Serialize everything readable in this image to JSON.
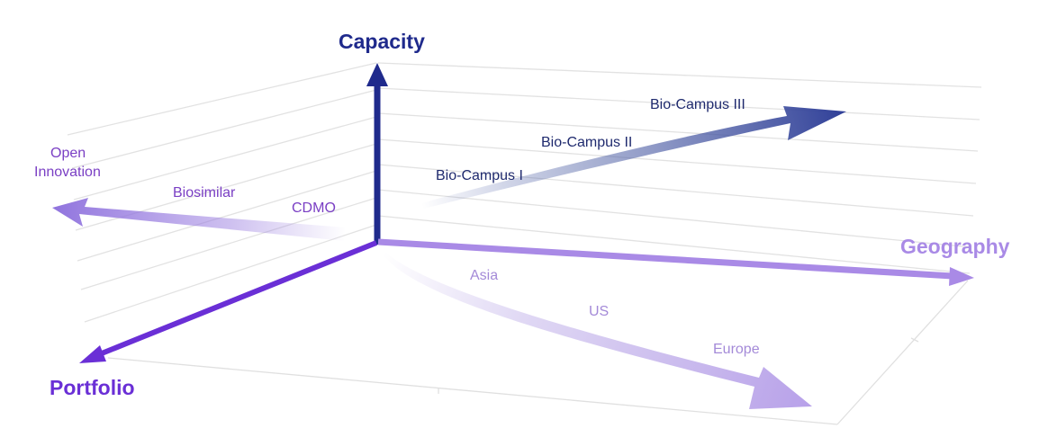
{
  "axes": {
    "capacity": "Capacity",
    "geography": "Geography",
    "portfolio": "Portfolio"
  },
  "capacity_steps": [
    "Bio-Campus I",
    "Bio-Campus II",
    "Bio-Campus III"
  ],
  "portfolio_steps": {
    "cdmo": "CDMO",
    "biosimilar": "Biosimilar",
    "open_innovation_line1": "Open",
    "open_innovation_line2": "Innovation"
  },
  "geography_steps": [
    "Asia",
    "US",
    "Europe"
  ],
  "colors": {
    "capacity": "#1f2a8c",
    "portfolio": "#6a2fd6",
    "geography": "#a98ae6",
    "step_text_navy": "#1f2a6e",
    "step_text_purple": "#7a3fc4",
    "step_text_light": "#a48ad8",
    "grid": "#e2e2e2"
  }
}
